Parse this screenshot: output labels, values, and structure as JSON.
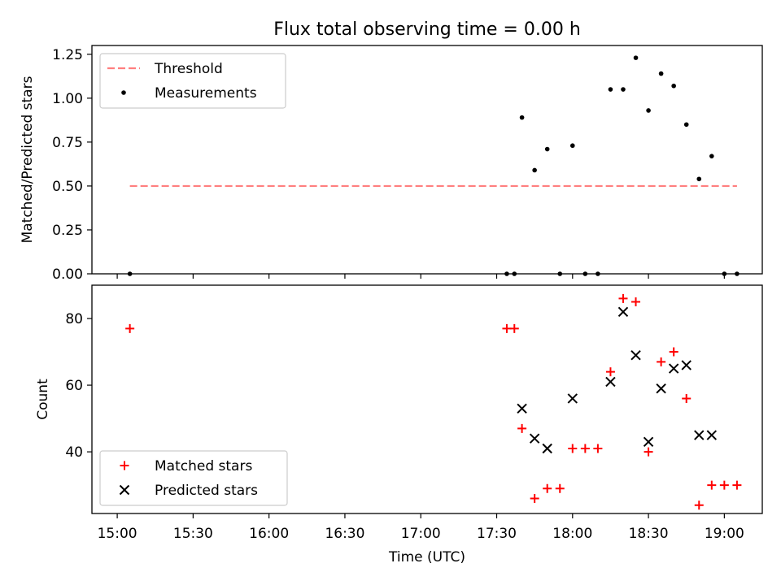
{
  "figure": {
    "title": "Flux total observing time = 0.00 h"
  },
  "chart_data": [
    {
      "type": "scatter",
      "panel": "top",
      "ylabel": "Matched/Predicted stars",
      "xlabel": "",
      "ylim": [
        0,
        1.3
      ],
      "xlim_minutes": [
        890,
        1155
      ],
      "yticks": [
        0.0,
        0.25,
        0.5,
        0.75,
        1.0,
        1.25
      ],
      "ytick_labels": [
        "0.00",
        "0.25",
        "0.50",
        "0.75",
        "1.00",
        "1.25"
      ],
      "legend_position": "upper-left",
      "threshold": {
        "name": "Threshold",
        "value": 0.5,
        "x_start": "15:05",
        "x_end": "19:05",
        "color": "#ff7f7f"
      },
      "series": [
        {
          "name": "Measurements",
          "color": "#000000",
          "marker": "dot",
          "points": [
            [
              "15:05",
              0.0
            ],
            [
              "17:34",
              0.0
            ],
            [
              "17:37",
              0.0
            ],
            [
              "17:40",
              0.89
            ],
            [
              "17:45",
              0.59
            ],
            [
              "17:50",
              0.71
            ],
            [
              "17:55",
              0.0
            ],
            [
              "18:00",
              0.73
            ],
            [
              "18:05",
              0.0
            ],
            [
              "18:10",
              0.0
            ],
            [
              "18:15",
              1.05
            ],
            [
              "18:20",
              1.05
            ],
            [
              "18:25",
              1.23
            ],
            [
              "18:30",
              0.93
            ],
            [
              "18:35",
              1.14
            ],
            [
              "18:40",
              1.07
            ],
            [
              "18:45",
              0.85
            ],
            [
              "18:50",
              0.54
            ],
            [
              "18:55",
              0.67
            ],
            [
              "19:00",
              0.0
            ],
            [
              "19:05",
              0.0
            ]
          ]
        }
      ]
    },
    {
      "type": "scatter",
      "panel": "bottom",
      "ylabel": "Count",
      "xlabel": "Time (UTC)",
      "ylim": [
        21.5,
        90
      ],
      "xlim_minutes": [
        890,
        1155
      ],
      "yticks": [
        40,
        60,
        80
      ],
      "ytick_labels": [
        "40",
        "60",
        "80"
      ],
      "xticks": [
        "15:00",
        "15:30",
        "16:00",
        "16:30",
        "17:00",
        "17:30",
        "18:00",
        "18:30",
        "19:00"
      ],
      "legend_position": "lower-left",
      "series": [
        {
          "name": "Matched stars",
          "color": "#ff0000",
          "marker": "plus",
          "points": [
            [
              "15:05",
              77
            ],
            [
              "17:34",
              77
            ],
            [
              "17:37",
              77
            ],
            [
              "17:40",
              47
            ],
            [
              "17:45",
              26
            ],
            [
              "17:50",
              29
            ],
            [
              "17:55",
              29
            ],
            [
              "18:00",
              41
            ],
            [
              "18:05",
              41
            ],
            [
              "18:10",
              41
            ],
            [
              "18:15",
              64
            ],
            [
              "18:20",
              86
            ],
            [
              "18:25",
              85
            ],
            [
              "18:30",
              40
            ],
            [
              "18:35",
              67
            ],
            [
              "18:40",
              70
            ],
            [
              "18:45",
              56
            ],
            [
              "18:50",
              24
            ],
            [
              "18:55",
              30
            ],
            [
              "19:00",
              30
            ],
            [
              "19:05",
              30
            ]
          ]
        },
        {
          "name": "Predicted stars",
          "color": "#000000",
          "marker": "x",
          "points": [
            [
              "17:40",
              53
            ],
            [
              "17:45",
              44
            ],
            [
              "17:50",
              41
            ],
            [
              "18:00",
              56
            ],
            [
              "18:15",
              61
            ],
            [
              "18:20",
              82
            ],
            [
              "18:25",
              69
            ],
            [
              "18:30",
              43
            ],
            [
              "18:35",
              59
            ],
            [
              "18:40",
              65
            ],
            [
              "18:45",
              66
            ],
            [
              "18:50",
              45
            ],
            [
              "18:55",
              45
            ]
          ]
        }
      ]
    }
  ]
}
